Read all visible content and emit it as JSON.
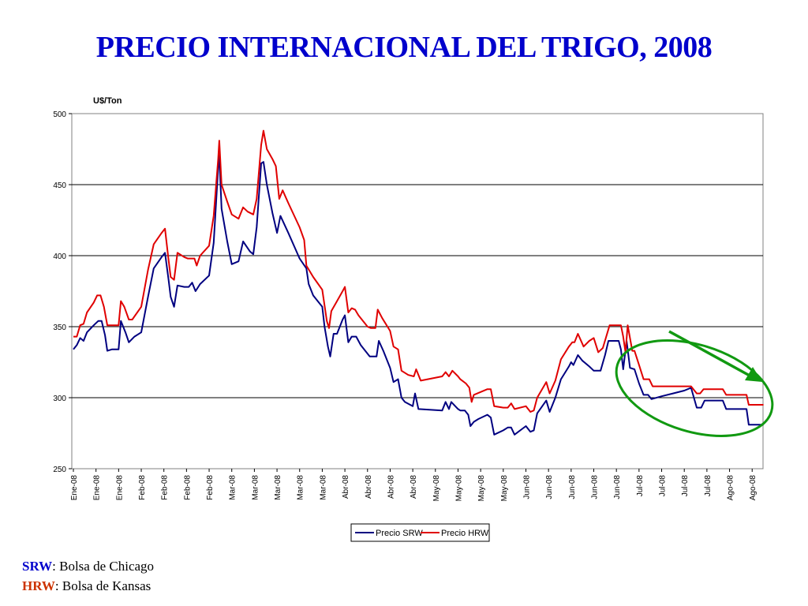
{
  "title": "PRECIO INTERNACIONAL DEL TRIGO, 2008",
  "footnotes": [
    {
      "code": "SRW",
      "text": ": Bolsa de Chicago",
      "color": "#0000cc"
    },
    {
      "code": "HRW",
      "text": ": Bolsa de Kansas",
      "color": "#cc3300"
    }
  ],
  "chart_data": {
    "type": "line",
    "ylabel": "U$/Ton",
    "xlabel": "",
    "ylim": [
      250,
      500
    ],
    "yticks": [
      250,
      300,
      350,
      400,
      450,
      500
    ],
    "grid": true,
    "legend_position": "bottom-center",
    "x_tick_labels": [
      "Ene-08",
      "Ene-08",
      "Ene-08",
      "Feb-08",
      "Feb-08",
      "Feb-08",
      "Feb-08",
      "Mar-08",
      "Mar-08",
      "Mar-08",
      "Mar-08",
      "Mar-08",
      "Abr-08",
      "Abr-08",
      "Abr-08",
      "Abr-08",
      "May-08",
      "May-08",
      "May-08",
      "May-08",
      "Jun-08",
      "Jun-08",
      "Jun-08",
      "Jun-08",
      "Jun-08",
      "Jul-08",
      "Jul-08",
      "Jul-08",
      "Jul-08",
      "Ago-08",
      "Ago-08"
    ],
    "x_range": [
      0,
      30.5
    ],
    "series": [
      {
        "name": "Precio SRW",
        "color": "#000080",
        "points": [
          [
            0,
            334
          ],
          [
            0.15,
            337
          ],
          [
            0.3,
            342
          ],
          [
            0.45,
            340
          ],
          [
            0.6,
            346
          ],
          [
            0.9,
            351
          ],
          [
            1.1,
            354
          ],
          [
            1.25,
            354
          ],
          [
            1.4,
            344
          ],
          [
            1.5,
            333
          ],
          [
            1.7,
            334
          ],
          [
            2.0,
            334
          ],
          [
            2.1,
            354
          ],
          [
            2.3,
            346
          ],
          [
            2.45,
            339
          ],
          [
            2.7,
            343
          ],
          [
            3.0,
            346
          ],
          [
            3.3,
            371
          ],
          [
            3.55,
            391
          ],
          [
            3.9,
            399
          ],
          [
            4.05,
            402
          ],
          [
            4.2,
            384
          ],
          [
            4.3,
            371
          ],
          [
            4.45,
            364
          ],
          [
            4.6,
            379
          ],
          [
            4.9,
            378
          ],
          [
            5.1,
            378
          ],
          [
            5.25,
            381
          ],
          [
            5.4,
            375
          ],
          [
            5.6,
            380
          ],
          [
            6.0,
            386
          ],
          [
            6.2,
            409
          ],
          [
            6.4,
            462
          ],
          [
            6.45,
            471
          ],
          [
            6.55,
            433
          ],
          [
            6.8,
            410
          ],
          [
            7.0,
            394
          ],
          [
            7.3,
            396
          ],
          [
            7.5,
            410
          ],
          [
            7.8,
            403
          ],
          [
            7.95,
            401
          ],
          [
            8.1,
            420
          ],
          [
            8.3,
            465
          ],
          [
            8.4,
            466
          ],
          [
            8.55,
            450
          ],
          [
            8.8,
            430
          ],
          [
            9.0,
            416
          ],
          [
            9.15,
            428
          ],
          [
            9.5,
            416
          ],
          [
            10.0,
            398
          ],
          [
            10.3,
            391
          ],
          [
            10.4,
            380
          ],
          [
            10.6,
            372
          ],
          [
            11.0,
            364
          ],
          [
            11.1,
            350
          ],
          [
            11.25,
            336
          ],
          [
            11.35,
            329
          ],
          [
            11.5,
            345
          ],
          [
            11.65,
            345
          ],
          [
            11.9,
            355
          ],
          [
            12.0,
            358
          ],
          [
            12.15,
            339
          ],
          [
            12.3,
            343
          ],
          [
            12.5,
            343
          ],
          [
            12.7,
            337
          ],
          [
            13.0,
            331
          ],
          [
            13.1,
            329
          ],
          [
            13.4,
            329
          ],
          [
            13.5,
            340
          ],
          [
            13.7,
            333
          ],
          [
            14.0,
            321
          ],
          [
            14.15,
            311
          ],
          [
            14.35,
            313
          ],
          [
            14.5,
            300
          ],
          [
            14.65,
            297
          ],
          [
            15.0,
            294
          ],
          [
            15.1,
            303
          ],
          [
            15.25,
            292
          ],
          [
            16.3,
            291
          ],
          [
            16.45,
            297
          ],
          [
            16.6,
            292
          ],
          [
            16.7,
            297
          ],
          [
            17.0,
            292
          ],
          [
            17.1,
            291
          ],
          [
            17.3,
            291
          ],
          [
            17.45,
            288
          ],
          [
            17.55,
            280
          ],
          [
            17.7,
            283
          ],
          [
            17.9,
            285
          ],
          [
            18.3,
            288
          ],
          [
            18.45,
            286
          ],
          [
            18.6,
            274
          ],
          [
            19.0,
            277
          ],
          [
            19.2,
            279
          ],
          [
            19.35,
            279
          ],
          [
            19.5,
            274
          ],
          [
            20.0,
            280
          ],
          [
            20.2,
            276
          ],
          [
            20.35,
            277
          ],
          [
            20.5,
            289
          ],
          [
            20.9,
            298
          ],
          [
            21.05,
            290
          ],
          [
            21.3,
            300
          ],
          [
            21.55,
            313
          ],
          [
            21.9,
            322
          ],
          [
            22.0,
            325
          ],
          [
            22.1,
            323
          ],
          [
            22.3,
            330
          ],
          [
            22.5,
            326
          ],
          [
            22.8,
            322
          ],
          [
            23.0,
            319
          ],
          [
            23.3,
            319
          ],
          [
            23.5,
            330
          ],
          [
            23.65,
            340
          ],
          [
            23.9,
            340
          ],
          [
            24.1,
            340
          ],
          [
            24.2,
            334
          ],
          [
            24.3,
            320
          ],
          [
            24.45,
            340
          ],
          [
            24.6,
            321
          ],
          [
            24.8,
            320
          ],
          [
            25.0,
            310
          ],
          [
            25.2,
            302
          ],
          [
            25.4,
            302
          ],
          [
            25.55,
            299
          ],
          [
            26.0,
            301
          ],
          [
            26.5,
            303
          ],
          [
            27.0,
            305
          ],
          [
            27.3,
            307
          ],
          [
            27.55,
            293
          ],
          [
            27.75,
            293
          ],
          [
            27.9,
            298
          ],
          [
            28.5,
            298
          ],
          [
            28.7,
            298
          ],
          [
            28.85,
            292
          ],
          [
            29.5,
            292
          ],
          [
            29.75,
            292
          ],
          [
            29.85,
            281
          ],
          [
            30.1,
            281
          ],
          [
            30.5,
            281
          ]
        ]
      },
      {
        "name": "Precio HRW",
        "color": "#e00000",
        "points": [
          [
            0,
            343
          ],
          [
            0.15,
            343
          ],
          [
            0.3,
            351
          ],
          [
            0.45,
            352
          ],
          [
            0.6,
            360
          ],
          [
            0.9,
            367
          ],
          [
            1.05,
            372
          ],
          [
            1.2,
            372
          ],
          [
            1.35,
            364
          ],
          [
            1.5,
            351
          ],
          [
            2.0,
            351
          ],
          [
            2.1,
            368
          ],
          [
            2.25,
            364
          ],
          [
            2.45,
            355
          ],
          [
            2.6,
            355
          ],
          [
            3.0,
            364
          ],
          [
            3.3,
            390
          ],
          [
            3.55,
            408
          ],
          [
            3.9,
            416
          ],
          [
            4.05,
            419
          ],
          [
            4.2,
            398
          ],
          [
            4.3,
            385
          ],
          [
            4.45,
            383
          ],
          [
            4.6,
            402
          ],
          [
            4.9,
            399
          ],
          [
            5.05,
            398
          ],
          [
            5.35,
            398
          ],
          [
            5.45,
            393
          ],
          [
            5.6,
            400
          ],
          [
            6.0,
            407
          ],
          [
            6.2,
            428
          ],
          [
            6.4,
            468
          ],
          [
            6.45,
            481
          ],
          [
            6.55,
            450
          ],
          [
            6.8,
            438
          ],
          [
            7.0,
            429
          ],
          [
            7.3,
            426
          ],
          [
            7.5,
            434
          ],
          [
            7.7,
            431
          ],
          [
            7.95,
            429
          ],
          [
            8.1,
            440
          ],
          [
            8.3,
            478
          ],
          [
            8.4,
            488
          ],
          [
            8.55,
            475
          ],
          [
            8.8,
            468
          ],
          [
            8.95,
            463
          ],
          [
            9.1,
            440
          ],
          [
            9.25,
            446
          ],
          [
            9.5,
            437
          ],
          [
            10.0,
            420
          ],
          [
            10.2,
            411
          ],
          [
            10.3,
            393
          ],
          [
            10.6,
            385
          ],
          [
            11.0,
            376
          ],
          [
            11.1,
            365
          ],
          [
            11.2,
            354
          ],
          [
            11.3,
            349
          ],
          [
            11.4,
            361
          ],
          [
            11.65,
            368
          ],
          [
            11.9,
            375
          ],
          [
            12.0,
            378
          ],
          [
            12.15,
            360
          ],
          [
            12.3,
            363
          ],
          [
            12.45,
            362
          ],
          [
            12.6,
            358
          ],
          [
            13.0,
            350
          ],
          [
            13.15,
            349
          ],
          [
            13.35,
            349
          ],
          [
            13.45,
            362
          ],
          [
            13.65,
            356
          ],
          [
            14.0,
            347
          ],
          [
            14.15,
            336
          ],
          [
            14.35,
            334
          ],
          [
            14.5,
            319
          ],
          [
            14.8,
            316
          ],
          [
            15.05,
            315
          ],
          [
            15.15,
            320
          ],
          [
            15.35,
            312
          ],
          [
            16.3,
            315
          ],
          [
            16.45,
            318
          ],
          [
            16.6,
            315
          ],
          [
            16.75,
            319
          ],
          [
            17.0,
            315
          ],
          [
            17.1,
            313
          ],
          [
            17.35,
            310
          ],
          [
            17.5,
            307
          ],
          [
            17.6,
            297
          ],
          [
            17.7,
            302
          ],
          [
            18.3,
            306
          ],
          [
            18.45,
            306
          ],
          [
            18.6,
            294
          ],
          [
            19.0,
            293
          ],
          [
            19.2,
            293
          ],
          [
            19.35,
            296
          ],
          [
            19.5,
            292
          ],
          [
            20.0,
            294
          ],
          [
            20.2,
            290
          ],
          [
            20.35,
            291
          ],
          [
            20.5,
            300
          ],
          [
            20.9,
            311
          ],
          [
            21.05,
            303
          ],
          [
            21.3,
            312
          ],
          [
            21.55,
            327
          ],
          [
            21.9,
            336
          ],
          [
            22.05,
            339
          ],
          [
            22.15,
            339
          ],
          [
            22.3,
            345
          ],
          [
            22.55,
            336
          ],
          [
            22.8,
            340
          ],
          [
            23.0,
            342
          ],
          [
            23.2,
            332
          ],
          [
            23.4,
            335
          ],
          [
            23.7,
            351
          ],
          [
            24.0,
            351
          ],
          [
            24.2,
            351
          ],
          [
            24.3,
            343
          ],
          [
            24.4,
            332
          ],
          [
            24.5,
            351
          ],
          [
            24.7,
            333
          ],
          [
            24.8,
            333
          ],
          [
            25.0,
            323
          ],
          [
            25.2,
            313
          ],
          [
            25.45,
            313
          ],
          [
            25.6,
            308
          ],
          [
            26.0,
            308
          ],
          [
            26.5,
            308
          ],
          [
            27.0,
            308
          ],
          [
            27.3,
            308
          ],
          [
            27.55,
            303
          ],
          [
            27.7,
            303
          ],
          [
            27.85,
            306
          ],
          [
            28.5,
            306
          ],
          [
            28.7,
            306
          ],
          [
            28.85,
            302
          ],
          [
            29.5,
            302
          ],
          [
            29.75,
            302
          ],
          [
            29.85,
            295
          ],
          [
            30.1,
            295
          ],
          [
            30.5,
            295
          ]
        ]
      }
    ]
  }
}
